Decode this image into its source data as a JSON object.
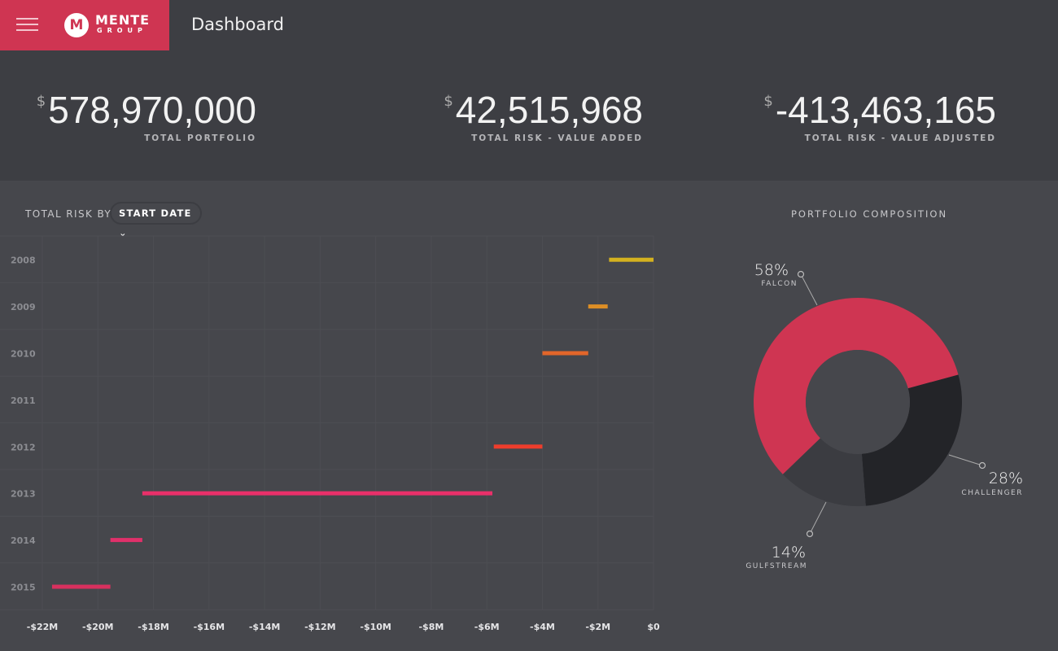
{
  "header": {
    "brand_mark": "M",
    "brand_name": "MENTE",
    "brand_sub": "GROUP",
    "title": "Dashboard"
  },
  "stats": [
    {
      "currency": "$",
      "value": "578,970,000",
      "label": "TOTAL PORTFOLIO"
    },
    {
      "currency": "$",
      "value": "42,515,968",
      "label": "TOTAL RISK - VALUE ADDED"
    },
    {
      "currency": "$",
      "value": "-413,463,165",
      "label": "TOTAL RISK - VALUE ADJUSTED"
    }
  ],
  "risk": {
    "label": "TOTAL RISK BY",
    "dropdown": "START DATE"
  },
  "composition": {
    "title": "PORTFOLIO COMPOSITION"
  },
  "chart_data": [
    {
      "type": "bar",
      "subtype": "waterfall-horizontal",
      "title": "TOTAL RISK BY START DATE",
      "categories": [
        "2008",
        "2009",
        "2010",
        "2011",
        "2012",
        "2013",
        "2014",
        "2015"
      ],
      "ranges": [
        [
          -1.6,
          0
        ],
        [
          -2.35,
          -1.65
        ],
        [
          -4.0,
          -2.35
        ],
        [
          -4.0,
          -4.0
        ],
        [
          -5.75,
          -4.0
        ],
        [
          -18.4,
          -5.8
        ],
        [
          -19.55,
          -18.4
        ],
        [
          -21.65,
          -19.55
        ]
      ],
      "colors": [
        "#d4b21f",
        "#dd8e25",
        "#e2662a",
        "#e2662a",
        "#ee3d2c",
        "#e9306a",
        "#e0306a",
        "#d8305e"
      ],
      "xticks": [
        "-$22M",
        "-$20M",
        "-$18M",
        "-$16M",
        "-$14M",
        "-$12M",
        "-$10M",
        "-$8M",
        "-$6M",
        "-$4M",
        "-$2M",
        "$0"
      ],
      "xlim": [
        -22,
        0
      ],
      "unit": "$M",
      "grid": true
    },
    {
      "type": "pie",
      "subtype": "donut",
      "title": "PORTFOLIO COMPOSITION",
      "slices": [
        {
          "label": "FALCON",
          "pct": "58%",
          "value": 58,
          "color": "#cf3552"
        },
        {
          "label": "CHALLENGER",
          "pct": "28%",
          "value": 28,
          "color": "#232428"
        },
        {
          "label": "GULFSTREAM",
          "pct": "14%",
          "value": 14,
          "color": "#3b3c41"
        }
      ]
    }
  ]
}
